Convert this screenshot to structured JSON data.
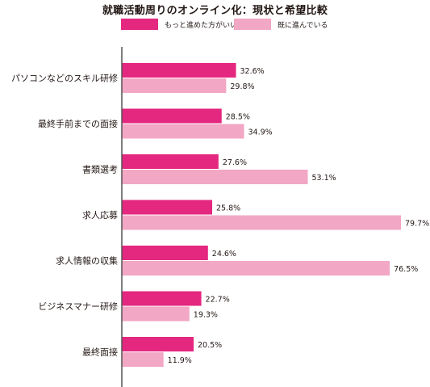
{
  "chart_data": {
    "type": "bar",
    "orientation": "horizontal",
    "title": "就職活動周りのオンライン化：現状と希望比較",
    "categories": [
      "パソコンなどのスキル研修",
      "最終手前までの面接",
      "書類選考",
      "求人応募",
      "求人情報の収集",
      "ビジネスマナー研修",
      "最終面接"
    ],
    "series": [
      {
        "name": "もっと進めた方がいい",
        "color": "#e4277f",
        "values": [
          32.6,
          28.5,
          27.6,
          25.8,
          24.6,
          22.7,
          20.5
        ],
        "labels": [
          "32.6%",
          "28.5%",
          "27.6%",
          "25.8%",
          "24.6%",
          "22.7%",
          "20.5%"
        ]
      },
      {
        "name": "既に進んでいる",
        "color": "#f2a7c4",
        "values": [
          29.8,
          34.9,
          53.1,
          79.7,
          76.5,
          19.3,
          11.9
        ],
        "labels": [
          "29.8%",
          "34.9%",
          "53.1%",
          "79.7%",
          "76.5%",
          "19.3%",
          "11.9%"
        ]
      }
    ],
    "xlim": [
      0,
      100
    ],
    "grid": false,
    "legend": "top"
  }
}
